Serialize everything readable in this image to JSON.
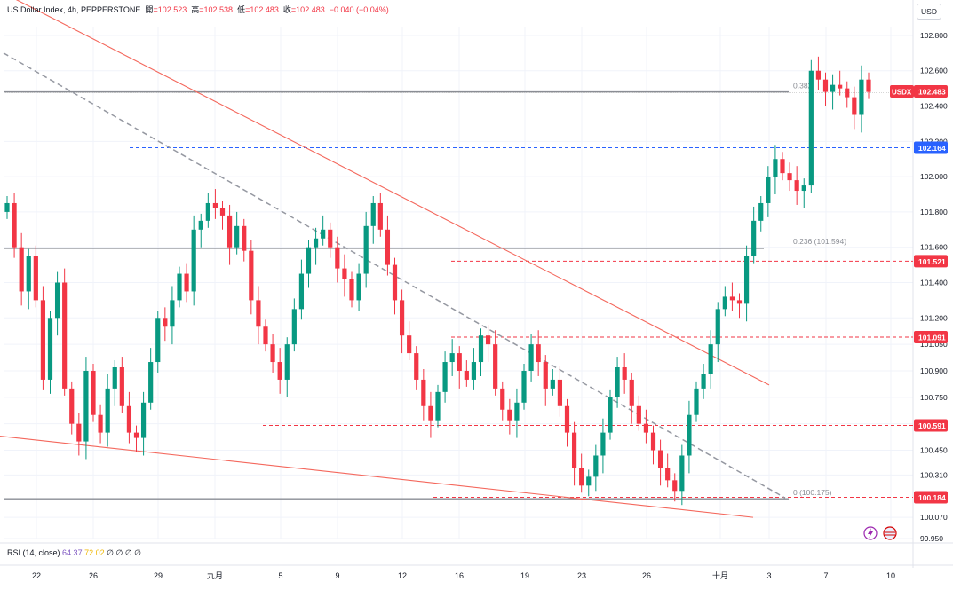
{
  "header": {
    "symbol": "US Dollar Index, 4h, PEPPERSTONE",
    "open_label": "開",
    "open": "=102.523",
    "high_label": "高",
    "high": "=102.538",
    "low_label": "低",
    "low": "=102.483",
    "close_label": "收",
    "close": "=102.483",
    "change": "−0.040 (−0.04%)"
  },
  "currency_button": "USD",
  "rsi": {
    "label": "RSI (14, close)",
    "value": "64.37",
    "ma": "72.02",
    "extra": "∅ ∅ ∅ ∅"
  },
  "colors": {
    "up": "#089981",
    "down": "#f23645",
    "trend": "#f4685d",
    "level_red": "#f23645",
    "level_blue": "#2962ff",
    "grid": "#f0f3fa",
    "gray_line": "#8a8d94"
  },
  "chart_data": {
    "type": "candlestick",
    "title": "US Dollar Index, 4h, PEPPERSTONE",
    "y_range": [
      99.95,
      102.85
    ],
    "y_ticks": [
      "102.800",
      "102.600",
      "102.400",
      "102.200",
      "102.000",
      "101.800",
      "101.600",
      "101.400",
      "101.200",
      "101.050",
      "100.900",
      "100.750",
      "100.600",
      "100.450",
      "100.310",
      "100.070",
      "99.950"
    ],
    "x_ticks": [
      "22",
      "26",
      "29",
      "九月",
      "5",
      "9",
      "12",
      "16",
      "19",
      "23",
      "26",
      "十月",
      "3",
      "7",
      "10"
    ],
    "last_price": {
      "label": "USDX",
      "value": "102.483"
    },
    "horizontal_levels": [
      {
        "value": "102.164",
        "style": "dashed",
        "color": "#2962ff"
      },
      {
        "value": "101.521",
        "style": "dashed",
        "color": "#f23645"
      },
      {
        "value": "101.091",
        "style": "dashed",
        "color": "#f23645"
      },
      {
        "value": "100.591",
        "style": "dashed",
        "color": "#f23645"
      },
      {
        "value": "100.184",
        "style": "dashed",
        "color": "#f23645"
      }
    ],
    "fibonacci": [
      {
        "label": "0.382",
        "value": 102.48
      },
      {
        "label": "0.236 (101.594)",
        "value": 101.594
      },
      {
        "label": "0 (100.175)",
        "value": 100.175
      }
    ],
    "trendlines": [
      {
        "name": "upper-channel",
        "from": [
          "Aug 20",
          103.05
        ],
        "to": [
          "Oct 4",
          100.82
        ]
      },
      {
        "name": "lower-channel",
        "from": [
          "Aug 20",
          100.53
        ],
        "to": [
          "Oct 2",
          100.07
        ]
      },
      {
        "name": "dashed-trend",
        "from": [
          "Aug 20",
          102.7
        ],
        "to": [
          "Oct 3",
          100.18
        ]
      }
    ],
    "ohlc_path": [
      101.85,
      101.6,
      101.35,
      101.55,
      101.3,
      100.85,
      101.2,
      101.4,
      100.8,
      100.6,
      100.5,
      100.9,
      100.65,
      100.55,
      100.8,
      100.92,
      100.7,
      100.55,
      100.52,
      100.72,
      100.95,
      101.2,
      101.15,
      101.3,
      101.45,
      101.35,
      101.7,
      101.75,
      101.85,
      101.82,
      101.78,
      101.6,
      101.72,
      101.58,
      101.3,
      101.15,
      101.05,
      100.95,
      100.85,
      101.05,
      101.25,
      101.45,
      101.6,
      101.65,
      101.7,
      101.6,
      101.48,
      101.42,
      101.3,
      101.45,
      101.72,
      101.85,
      101.7,
      101.5,
      101.3,
      101.1,
      101.0,
      100.85,
      100.7,
      100.62,
      100.78,
      100.95,
      101.0,
      100.9,
      100.85,
      100.95,
      101.1,
      101.05,
      100.8,
      100.68,
      100.62,
      100.72,
      100.9,
      101.05,
      100.95,
      100.8,
      100.85,
      100.7,
      100.55,
      100.35,
      100.25,
      100.3,
      100.42,
      100.55,
      100.75,
      100.92,
      100.85,
      100.7,
      100.6,
      100.55,
      100.45,
      100.35,
      100.28,
      100.22,
      100.42,
      100.65,
      100.8,
      100.88,
      101.05,
      101.25,
      101.32,
      101.3,
      101.28,
      101.55,
      101.75,
      101.85,
      102.0,
      102.1,
      102.02,
      101.98,
      101.92,
      101.95,
      102.6,
      102.55,
      102.48,
      102.52,
      102.5,
      102.45,
      102.35,
      102.55,
      102.48
    ]
  }
}
